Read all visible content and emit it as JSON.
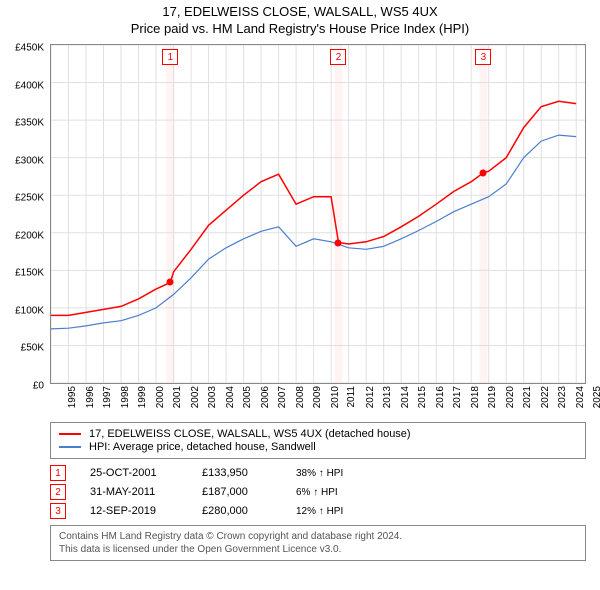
{
  "title": {
    "line1": "17, EDELWEISS CLOSE, WALSALL, WS5 4UX",
    "line2": "Price paid vs. HM Land Registry's House Price Index (HPI)"
  },
  "chart": {
    "type": "line",
    "ylim": [
      0,
      450000
    ],
    "ytick_step": 50000,
    "ytick_labels": [
      "£0",
      "£50K",
      "£100K",
      "£150K",
      "£200K",
      "£250K",
      "£300K",
      "£350K",
      "£400K",
      "£450K"
    ],
    "xlim": [
      1995,
      2025.5
    ],
    "xticks": [
      1995,
      1996,
      1997,
      1998,
      1999,
      2000,
      2001,
      2002,
      2003,
      2004,
      2005,
      2006,
      2007,
      2008,
      2009,
      2010,
      2011,
      2012,
      2013,
      2014,
      2015,
      2016,
      2017,
      2018,
      2019,
      2020,
      2021,
      2022,
      2023,
      2024,
      2025
    ],
    "background_color": "#ffffff",
    "grid_color": "#e0e0e0",
    "band_color": "#fff3f3",
    "series": [
      {
        "name": "property",
        "label": "17, EDELWEISS CLOSE, WALSALL, WS5 4UX (detached house)",
        "color": "#ff0000",
        "width": 1.5,
        "data": {
          "1995": 90000,
          "1996": 90000,
          "1997": 94000,
          "1998": 98000,
          "1999": 102000,
          "2000": 112000,
          "2001": 125000,
          "2001.82": 133950,
          "2002": 148000,
          "2003": 178000,
          "2004": 210000,
          "2005": 230000,
          "2006": 250000,
          "2007": 268000,
          "2008": 278000,
          "2009": 238000,
          "2010": 248000,
          "2011": 248000,
          "2011.42": 187000,
          "2012": 185000,
          "2013": 188000,
          "2014": 195000,
          "2015": 208000,
          "2016": 222000,
          "2017": 238000,
          "2018": 255000,
          "2019": 268000,
          "2019.7": 280000,
          "2020": 282000,
          "2021": 300000,
          "2022": 340000,
          "2023": 368000,
          "2024": 375000,
          "2025": 372000
        }
      },
      {
        "name": "hpi",
        "label": "HPI: Average price, detached house, Sandwell",
        "color": "#4a7fcf",
        "width": 1.2,
        "data": {
          "1995": 72000,
          "1996": 73000,
          "1997": 76000,
          "1998": 80000,
          "1999": 83000,
          "2000": 90000,
          "2001": 100000,
          "2002": 118000,
          "2003": 140000,
          "2004": 165000,
          "2005": 180000,
          "2006": 192000,
          "2007": 202000,
          "2008": 208000,
          "2009": 182000,
          "2010": 192000,
          "2011": 188000,
          "2012": 180000,
          "2013": 178000,
          "2014": 182000,
          "2015": 192000,
          "2016": 203000,
          "2017": 215000,
          "2018": 228000,
          "2019": 238000,
          "2020": 248000,
          "2021": 265000,
          "2022": 300000,
          "2023": 322000,
          "2024": 330000,
          "2025": 328000
        }
      }
    ],
    "sale_markers": [
      {
        "n": "1",
        "x": 2001.82,
        "y": 133950
      },
      {
        "n": "2",
        "x": 2011.42,
        "y": 187000
      },
      {
        "n": "3",
        "x": 2019.7,
        "y": 280000
      }
    ]
  },
  "legend": [
    {
      "color": "#ff0000",
      "label": "17, EDELWEISS CLOSE, WALSALL, WS5 4UX (detached house)"
    },
    {
      "color": "#4a7fcf",
      "label": "HPI: Average price, detached house, Sandwell"
    }
  ],
  "marker_table": [
    {
      "n": "1",
      "date": "25-OCT-2001",
      "price": "£133,950",
      "delta": "38% ↑ HPI"
    },
    {
      "n": "2",
      "date": "31-MAY-2011",
      "price": "£187,000",
      "delta": "6% ↑ HPI"
    },
    {
      "n": "3",
      "date": "12-SEP-2019",
      "price": "£280,000",
      "delta": "12% ↑ HPI"
    }
  ],
  "credits": {
    "line1": "Contains HM Land Registry data © Crown copyright and database right 2024.",
    "line2": "This data is licensed under the Open Government Licence v3.0."
  }
}
